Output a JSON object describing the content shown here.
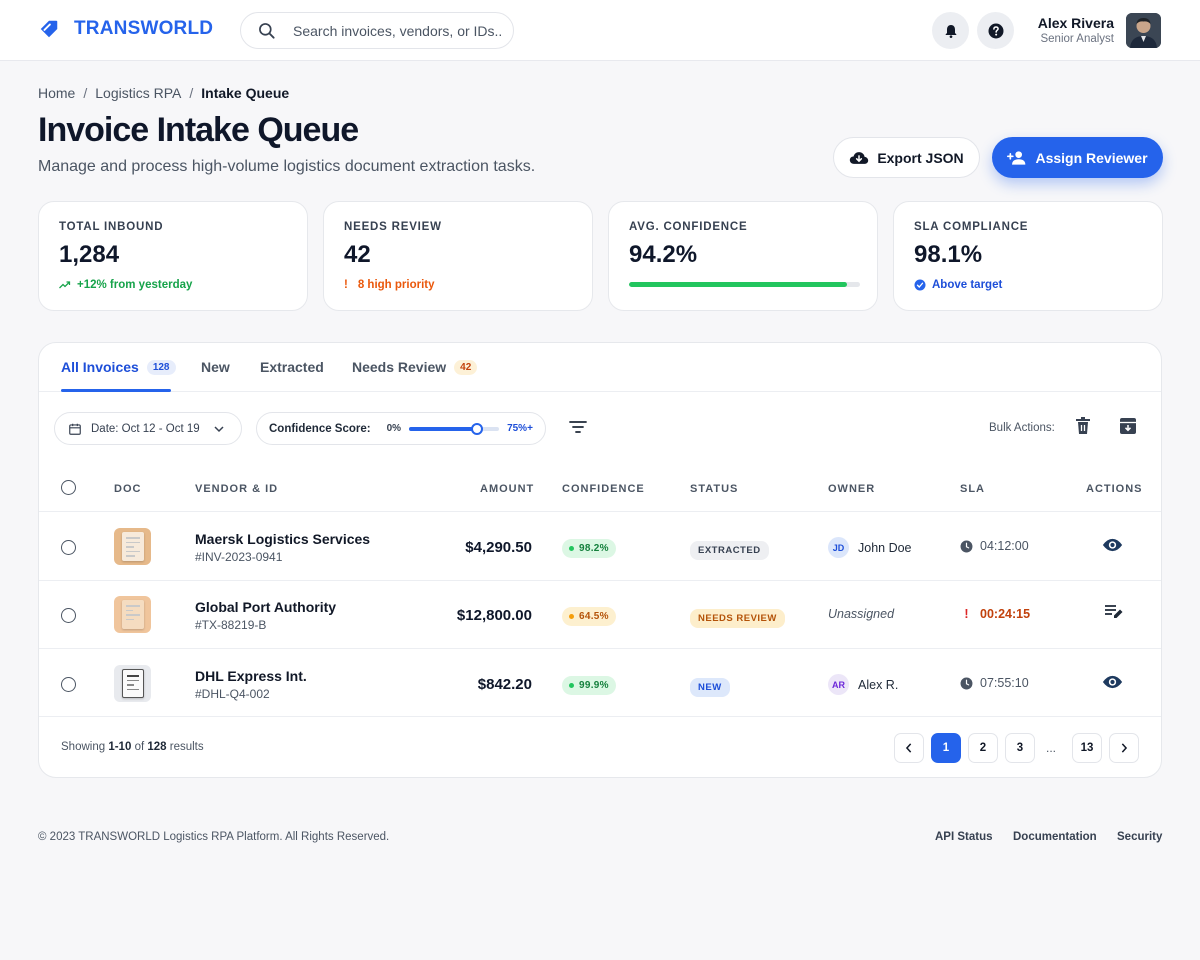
{
  "brand": {
    "name": "TRANSWORLD",
    "icon": "tag-icon"
  },
  "search": {
    "placeholder": "Search invoices, vendors, or IDs.."
  },
  "user": {
    "name": "Alex Rivera",
    "role": "Senior Analyst"
  },
  "breadcrumb": {
    "home": "Home",
    "section": "Logistics RPA",
    "current": "Intake Queue",
    "separator": "/"
  },
  "page": {
    "title": "Invoice Intake Queue",
    "subtitle": "Manage and process high-volume logistics document extraction tasks.",
    "export_label": "Export JSON",
    "assign_label": "Assign Reviewer"
  },
  "stats": [
    {
      "label": "TOTAL INBOUND",
      "value": "1,284",
      "note": "+12% from yesterday",
      "note_color": "#16a34a"
    },
    {
      "label": "NEEDS REVIEW",
      "value": "42",
      "note": "8 high priority",
      "note_color": "#ea580c"
    },
    {
      "label": "AVG. CONFIDENCE",
      "value": "94.2%",
      "progress": 0.942
    },
    {
      "label": "SLA COMPLIANCE",
      "value": "98.1%",
      "note": "Above target",
      "note_color": "#1d4ed8"
    }
  ],
  "tabs": [
    {
      "label": "All Invoices",
      "count": "128"
    },
    {
      "label": "New"
    },
    {
      "label": "Extracted"
    },
    {
      "label": "Needs Review",
      "count": "42"
    }
  ],
  "filters": {
    "date_label": "Date: Oct 12 - Oct 19",
    "confidence_label": "Confidence Score:",
    "confidence_min": "0%",
    "confidence_max": "75%+",
    "confidence_value": 0.75,
    "bulk_label": "Bulk Actions:"
  },
  "table": {
    "headers": {
      "doc": "DOC",
      "vendor": "VENDOR & ID",
      "amount": "AMOUNT",
      "confidence": "CONFIDENCE",
      "status": "STATUS",
      "owner": "OWNER",
      "sla": "SLA",
      "actions": "ACTIONS"
    },
    "rows": [
      {
        "vendor": "Maersk Logistics Services",
        "id": "#INV-2023-0941",
        "amount": "$4,290.50",
        "confidence": "98.2%",
        "conf_level": "high",
        "status": "EXTRACTED",
        "status_type": "extracted",
        "owner": "John Doe",
        "owner_initials": "JD",
        "sla": "04:12:00",
        "sla_urgent": false,
        "action": "view"
      },
      {
        "vendor": "Global Port Authority",
        "id": "#TX-88219-B",
        "amount": "$12,800.00",
        "confidence": "64.5%",
        "conf_level": "medium",
        "status": "NEEDS REVIEW",
        "status_type": "review",
        "owner": "Unassigned",
        "owner_initials": "",
        "sla": "00:24:15",
        "sla_urgent": true,
        "action": "edit"
      },
      {
        "vendor": "DHL Express Int.",
        "id": "#DHL-Q4-002",
        "amount": "$842.20",
        "confidence": "99.9%",
        "conf_level": "high",
        "status": "NEW",
        "status_type": "new",
        "owner": "Alex R.",
        "owner_initials": "AR",
        "sla": "07:55:10",
        "sla_urgent": false,
        "action": "view"
      }
    ]
  },
  "pagination": {
    "showing_prefix": "Showing",
    "range": "1-10",
    "of": "of",
    "total": "128",
    "suffix": "results",
    "pages": [
      "1",
      "2",
      "3"
    ],
    "ellipsis": "...",
    "last": "13",
    "current": "1"
  },
  "footer": {
    "copyright": "© 2023 TRANSWORLD Logistics RPA Platform. All Rights Reserved.",
    "links": [
      "API Status",
      "Documentation",
      "Security"
    ]
  },
  "colors": {
    "accent": "#2563eb",
    "success": "#22c55e",
    "warning": "#ea580c"
  }
}
